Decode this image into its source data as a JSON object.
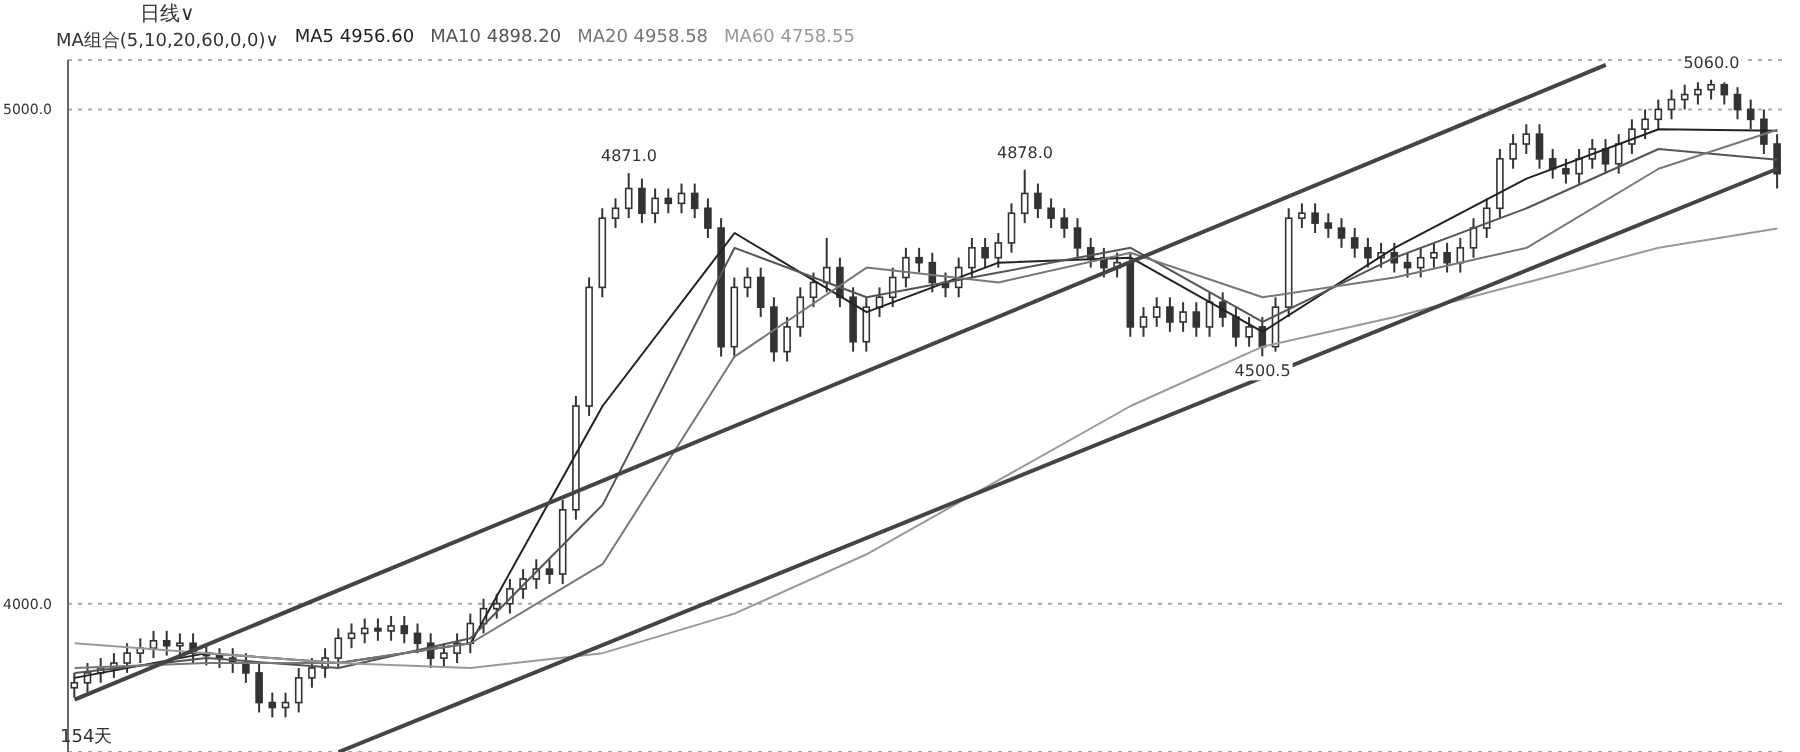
{
  "chart_data": {
    "type": "candlestick",
    "color": "#333333",
    "categories": [
      null,
      null,
      null,
      null,
      null,
      null,
      null,
      null,
      null,
      null,
      null,
      null,
      null,
      null,
      null,
      null,
      null,
      null,
      null,
      null,
      null,
      null,
      null,
      null,
      null,
      null,
      null,
      null,
      null,
      null,
      null,
      null,
      null,
      null,
      null,
      null,
      null,
      null,
      null,
      null,
      null,
      null,
      null,
      null,
      null,
      null,
      null,
      null,
      null,
      null,
      null,
      null,
      null,
      null,
      null,
      null,
      null,
      null,
      null,
      null,
      null,
      null,
      null,
      null,
      null,
      null,
      null,
      null,
      null,
      null,
      null,
      null,
      null,
      null,
      null,
      null,
      null,
      null,
      null,
      null,
      null,
      null,
      null,
      null,
      null,
      null,
      null,
      null,
      null,
      null,
      null,
      null,
      null,
      null,
      null,
      null,
      null,
      null,
      null,
      null,
      null,
      null,
      null,
      null,
      null,
      null,
      null,
      null,
      null,
      null,
      null,
      null,
      null,
      null,
      null,
      null,
      null,
      null,
      null,
      null,
      null,
      null,
      null,
      null,
      null,
      null,
      null,
      null,
      null,
      null
    ],
    "ohlc": [
      [
        3830,
        3860,
        3810,
        3840
      ],
      [
        3840,
        3880,
        3820,
        3860
      ],
      [
        3860,
        3890,
        3840,
        3870
      ],
      [
        3870,
        3900,
        3850,
        3880
      ],
      [
        3880,
        3920,
        3860,
        3900
      ],
      [
        3900,
        3930,
        3880,
        3910
      ],
      [
        3910,
        3945,
        3890,
        3925
      ],
      [
        3925,
        3945,
        3895,
        3915
      ],
      [
        3915,
        3940,
        3895,
        3920
      ],
      [
        3920,
        3940,
        3880,
        3900
      ],
      [
        3900,
        3915,
        3875,
        3895
      ],
      [
        3895,
        3910,
        3870,
        3890
      ],
      [
        3890,
        3910,
        3860,
        3880
      ],
      [
        3880,
        3900,
        3840,
        3860
      ],
      [
        3860,
        3880,
        3780,
        3800
      ],
      [
        3800,
        3820,
        3770,
        3790
      ],
      [
        3790,
        3820,
        3770,
        3800
      ],
      [
        3800,
        3870,
        3780,
        3850
      ],
      [
        3850,
        3890,
        3830,
        3870
      ],
      [
        3870,
        3910,
        3850,
        3890
      ],
      [
        3890,
        3950,
        3870,
        3930
      ],
      [
        3930,
        3960,
        3910,
        3940
      ],
      [
        3940,
        3970,
        3920,
        3950
      ],
      [
        3950,
        3970,
        3925,
        3945
      ],
      [
        3945,
        3975,
        3925,
        3955
      ],
      [
        3955,
        3975,
        3920,
        3940
      ],
      [
        3940,
        3960,
        3900,
        3920
      ],
      [
        3920,
        3940,
        3870,
        3890
      ],
      [
        3890,
        3920,
        3870,
        3900
      ],
      [
        3900,
        3940,
        3880,
        3920
      ],
      [
        3920,
        3980,
        3900,
        3960
      ],
      [
        3960,
        4010,
        3940,
        3990
      ],
      [
        3990,
        4020,
        3970,
        4000
      ],
      [
        4000,
        4050,
        3980,
        4030
      ],
      [
        4030,
        4070,
        4010,
        4050
      ],
      [
        4050,
        4090,
        4030,
        4070
      ],
      [
        4070,
        4090,
        4040,
        4060
      ],
      [
        4060,
        4210,
        4040,
        4190
      ],
      [
        4190,
        4420,
        4170,
        4400
      ],
      [
        4400,
        4660,
        4380,
        4640
      ],
      [
        4640,
        4800,
        4620,
        4780
      ],
      [
        4780,
        4820,
        4760,
        4800
      ],
      [
        4800,
        4871,
        4780,
        4840
      ],
      [
        4840,
        4860,
        4770,
        4790
      ],
      [
        4790,
        4840,
        4770,
        4820
      ],
      [
        4820,
        4840,
        4790,
        4810
      ],
      [
        4810,
        4850,
        4790,
        4830
      ],
      [
        4830,
        4850,
        4780,
        4800
      ],
      [
        4800,
        4820,
        4740,
        4760
      ],
      [
        4760,
        4780,
        4500,
        4520
      ],
      [
        4520,
        4660,
        4500,
        4640
      ],
      [
        4640,
        4680,
        4620,
        4660
      ],
      [
        4660,
        4680,
        4580,
        4600
      ],
      [
        4600,
        4620,
        4490,
        4510
      ],
      [
        4510,
        4580,
        4490,
        4560
      ],
      [
        4560,
        4640,
        4540,
        4620
      ],
      [
        4620,
        4670,
        4600,
        4650
      ],
      [
        4650,
        4740,
        4630,
        4680
      ],
      [
        4680,
        4700,
        4600,
        4620
      ],
      [
        4620,
        4640,
        4510,
        4530
      ],
      [
        4530,
        4620,
        4510,
        4600
      ],
      [
        4600,
        4640,
        4580,
        4620
      ],
      [
        4620,
        4680,
        4600,
        4660
      ],
      [
        4660,
        4720,
        4640,
        4700
      ],
      [
        4700,
        4720,
        4670,
        4690
      ],
      [
        4690,
        4710,
        4630,
        4650
      ],
      [
        4650,
        4670,
        4620,
        4640
      ],
      [
        4640,
        4700,
        4620,
        4680
      ],
      [
        4680,
        4740,
        4660,
        4720
      ],
      [
        4720,
        4740,
        4680,
        4700
      ],
      [
        4700,
        4750,
        4680,
        4730
      ],
      [
        4730,
        4810,
        4710,
        4790
      ],
      [
        4790,
        4878,
        4770,
        4830
      ],
      [
        4830,
        4850,
        4780,
        4800
      ],
      [
        4800,
        4820,
        4760,
        4780
      ],
      [
        4780,
        4800,
        4740,
        4760
      ],
      [
        4760,
        4780,
        4700,
        4720
      ],
      [
        4720,
        4740,
        4680,
        4700
      ],
      [
        4700,
        4720,
        4660,
        4680
      ],
      [
        4680,
        4710,
        4660,
        4690
      ],
      [
        4690,
        4710,
        4540,
        4560
      ],
      [
        4560,
        4600,
        4540,
        4580
      ],
      [
        4580,
        4620,
        4560,
        4600
      ],
      [
        4600,
        4620,
        4550,
        4570
      ],
      [
        4570,
        4610,
        4550,
        4590
      ],
      [
        4590,
        4610,
        4540,
        4560
      ],
      [
        4560,
        4630,
        4540,
        4610
      ],
      [
        4610,
        4630,
        4560,
        4580
      ],
      [
        4580,
        4600,
        4520,
        4540
      ],
      [
        4540,
        4580,
        4520,
        4560
      ],
      [
        4560,
        4580,
        4500.5,
        4520
      ],
      [
        4520,
        4620,
        4510,
        4600
      ],
      [
        4600,
        4800,
        4580,
        4780
      ],
      [
        4780,
        4810,
        4760,
        4790
      ],
      [
        4790,
        4810,
        4750,
        4770
      ],
      [
        4770,
        4790,
        4740,
        4760
      ],
      [
        4760,
        4780,
        4720,
        4740
      ],
      [
        4740,
        4760,
        4700,
        4720
      ],
      [
        4720,
        4740,
        4680,
        4700
      ],
      [
        4700,
        4730,
        4680,
        4710
      ],
      [
        4710,
        4730,
        4670,
        4690
      ],
      [
        4690,
        4710,
        4660,
        4680
      ],
      [
        4680,
        4720,
        4660,
        4700
      ],
      [
        4700,
        4730,
        4680,
        4710
      ],
      [
        4710,
        4730,
        4670,
        4690
      ],
      [
        4690,
        4740,
        4670,
        4720
      ],
      [
        4720,
        4780,
        4700,
        4760
      ],
      [
        4760,
        4820,
        4740,
        4800
      ],
      [
        4800,
        4920,
        4780,
        4900
      ],
      [
        4900,
        4950,
        4880,
        4930
      ],
      [
        4930,
        4970,
        4910,
        4950
      ],
      [
        4950,
        4970,
        4880,
        4900
      ],
      [
        4900,
        4920,
        4860,
        4880
      ],
      [
        4880,
        4900,
        4850,
        4870
      ],
      [
        4870,
        4920,
        4850,
        4900
      ],
      [
        4900,
        4940,
        4880,
        4920
      ],
      [
        4920,
        4940,
        4870,
        4890
      ],
      [
        4890,
        4950,
        4870,
        4930
      ],
      [
        4930,
        4980,
        4910,
        4960
      ],
      [
        4960,
        5000,
        4940,
        4980
      ],
      [
        4980,
        5020,
        4960,
        5000
      ],
      [
        5000,
        5040,
        4980,
        5020
      ],
      [
        5020,
        5050,
        5000,
        5030
      ],
      [
        5030,
        5055,
        5010,
        5040
      ],
      [
        5040,
        5060,
        5020,
        5050
      ],
      [
        5050,
        5055,
        5010,
        5030
      ],
      [
        5030,
        5045,
        4980,
        5000
      ],
      [
        5000,
        5020,
        4960,
        4980
      ],
      [
        4980,
        5000,
        4910,
        4930
      ],
      [
        4930,
        4950,
        4840,
        4870
      ]
    ],
    "series": [
      {
        "type": "line",
        "name": "MA5 4956.60",
        "color": "#222222",
        "values": [
          3850,
          null,
          null,
          null,
          null,
          null,
          null,
          null,
          null,
          null,
          3900,
          null,
          null,
          null,
          null,
          null,
          null,
          null,
          null,
          null,
          3880,
          null,
          null,
          null,
          null,
          null,
          null,
          null,
          null,
          null,
          3920,
          null,
          null,
          null,
          null,
          null,
          null,
          null,
          null,
          null,
          4400,
          null,
          null,
          null,
          null,
          null,
          null,
          null,
          null,
          null,
          4750,
          null,
          null,
          null,
          null,
          null,
          null,
          null,
          null,
          null,
          4590,
          null,
          null,
          null,
          null,
          null,
          null,
          null,
          null,
          null,
          4690,
          null,
          null,
          null,
          null,
          null,
          null,
          null,
          null,
          null,
          4700,
          null,
          null,
          null,
          null,
          null,
          null,
          null,
          null,
          null,
          4550,
          null,
          null,
          null,
          null,
          null,
          null,
          null,
          null,
          null,
          4720,
          null,
          null,
          null,
          null,
          null,
          null,
          null,
          null,
          null,
          4860,
          null,
          null,
          null,
          null,
          null,
          null,
          null,
          null,
          null,
          4960,
          null,
          null,
          null,
          null,
          null,
          null,
          null,
          null,
          4957
        ]
      },
      {
        "type": "line",
        "name": "MA10 4898.20",
        "color": "#555555",
        "values": [
          3860,
          null,
          null,
          null,
          null,
          null,
          null,
          null,
          null,
          null,
          3890,
          null,
          null,
          null,
          null,
          null,
          null,
          null,
          null,
          null,
          3870,
          null,
          null,
          null,
          null,
          null,
          null,
          null,
          null,
          null,
          3930,
          null,
          null,
          null,
          null,
          null,
          null,
          null,
          null,
          null,
          4200,
          null,
          null,
          null,
          null,
          null,
          null,
          null,
          null,
          null,
          4720,
          null,
          null,
          null,
          null,
          null,
          null,
          null,
          null,
          null,
          4620,
          null,
          null,
          null,
          null,
          null,
          null,
          null,
          null,
          null,
          4670,
          null,
          null,
          null,
          null,
          null,
          null,
          null,
          null,
          null,
          4720,
          null,
          null,
          null,
          null,
          null,
          null,
          null,
          null,
          null,
          4570,
          null,
          null,
          null,
          null,
          null,
          null,
          null,
          null,
          null,
          4700,
          null,
          null,
          null,
          null,
          null,
          null,
          null,
          null,
          null,
          4800,
          null,
          null,
          null,
          null,
          null,
          null,
          null,
          null,
          null,
          4920,
          null,
          null,
          null,
          null,
          null,
          null,
          null,
          null,
          4898
        ]
      },
      {
        "type": "line",
        "name": "MA20 4958.58",
        "color": "#777777",
        "values": [
          3870,
          null,
          null,
          null,
          null,
          null,
          null,
          null,
          null,
          null,
          3880,
          null,
          null,
          null,
          null,
          null,
          null,
          null,
          null,
          null,
          3880,
          null,
          null,
          null,
          null,
          null,
          null,
          null,
          null,
          null,
          3920,
          null,
          null,
          null,
          null,
          null,
          null,
          null,
          null,
          null,
          4080,
          null,
          null,
          null,
          null,
          null,
          null,
          null,
          null,
          null,
          4500,
          null,
          null,
          null,
          null,
          null,
          null,
          null,
          null,
          null,
          4680,
          null,
          null,
          null,
          null,
          null,
          null,
          null,
          null,
          null,
          4650,
          null,
          null,
          null,
          null,
          null,
          null,
          null,
          null,
          null,
          4710,
          null,
          null,
          null,
          null,
          null,
          null,
          null,
          null,
          null,
          4620,
          null,
          null,
          null,
          null,
          null,
          null,
          null,
          null,
          null,
          4660,
          null,
          null,
          null,
          null,
          null,
          null,
          null,
          null,
          null,
          4720,
          null,
          null,
          null,
          null,
          null,
          null,
          null,
          null,
          null,
          4880,
          null,
          null,
          null,
          null,
          null,
          null,
          null,
          null,
          4959
        ]
      },
      {
        "type": "line",
        "name": "MA60 4758.55",
        "color": "#999999",
        "values": [
          3920,
          null,
          null,
          null,
          null,
          null,
          null,
          null,
          null,
          null,
          3900,
          null,
          null,
          null,
          null,
          null,
          null,
          null,
          null,
          null,
          3880,
          null,
          null,
          null,
          null,
          null,
          null,
          null,
          null,
          null,
          3870,
          null,
          null,
          null,
          null,
          null,
          null,
          null,
          null,
          null,
          3900,
          null,
          null,
          null,
          null,
          null,
          null,
          null,
          null,
          null,
          3980,
          null,
          null,
          null,
          null,
          null,
          null,
          null,
          null,
          null,
          4100,
          null,
          null,
          null,
          null,
          null,
          null,
          null,
          null,
          null,
          4250,
          null,
          null,
          null,
          null,
          null,
          null,
          null,
          null,
          null,
          4400,
          null,
          null,
          null,
          null,
          null,
          null,
          null,
          null,
          null,
          4520,
          null,
          null,
          null,
          null,
          null,
          null,
          null,
          null,
          null,
          4580,
          null,
          null,
          null,
          null,
          null,
          null,
          null,
          null,
          null,
          4650,
          null,
          null,
          null,
          null,
          null,
          null,
          null,
          null,
          null,
          4720,
          null,
          null,
          null,
          null,
          null,
          null,
          null,
          null,
          4759
        ]
      },
      {
        "type": "line",
        "color": "#444444",
        "values": [
          3806,
          null,
          null,
          null,
          null,
          null,
          null,
          null,
          null,
          null,
          null,
          null,
          null,
          null,
          null,
          null,
          null,
          null,
          null,
          null,
          null,
          null,
          null,
          null,
          null,
          null,
          null,
          null,
          null,
          null,
          null,
          null,
          null,
          null,
          null,
          null,
          null,
          null,
          null,
          null,
          null,
          null,
          null,
          null,
          null,
          null,
          null,
          null,
          null,
          null,
          null,
          null,
          null,
          null,
          null,
          null,
          null,
          null,
          null,
          null,
          null,
          null,
          null,
          null,
          null,
          null,
          null,
          null,
          null,
          null,
          null,
          null,
          null,
          null,
          null,
          null,
          null,
          null,
          null,
          null,
          null,
          null,
          null,
          null,
          null,
          null,
          null,
          null,
          null,
          null,
          null,
          null,
          null,
          null,
          null,
          null,
          null,
          null,
          null,
          null,
          null,
          null,
          null,
          null,
          null,
          null,
          null,
          null,
          null,
          null,
          null,
          null,
          null,
          null,
          null,
          null,
          5090,
          null,
          null,
          null,
          null,
          null,
          null,
          null,
          null,
          null,
          null,
          null,
          null,
          null
        ]
      },
      {
        "type": "line",
        "color": "#444444",
        "values": [
          null,
          null,
          null,
          null,
          null,
          null,
          null,
          null,
          null,
          null,
          null,
          null,
          null,
          null,
          null,
          null,
          null,
          null,
          null,
          null,
          3700,
          null,
          null,
          null,
          null,
          null,
          null,
          null,
          null,
          null,
          null,
          null,
          null,
          null,
          null,
          null,
          null,
          null,
          null,
          null,
          null,
          null,
          null,
          null,
          null,
          null,
          null,
          null,
          null,
          null,
          null,
          null,
          null,
          null,
          null,
          null,
          null,
          null,
          null,
          null,
          null,
          null,
          null,
          null,
          null,
          null,
          null,
          null,
          null,
          null,
          null,
          null,
          null,
          null,
          null,
          null,
          null,
          null,
          null,
          null,
          null,
          null,
          null,
          null,
          null,
          null,
          null,
          null,
          null,
          null,
          null,
          null,
          null,
          null,
          null,
          null,
          null,
          null,
          null,
          null,
          null,
          null,
          null,
          null,
          null,
          null,
          null,
          null,
          null,
          null,
          null,
          null,
          null,
          null,
          null,
          null,
          null,
          null,
          null,
          null,
          null,
          null,
          null,
          null,
          null,
          null,
          null,
          null,
          null,
          4880
        ]
      }
    ],
    "ylim": [
      3700,
      5100
    ],
    "yticks": [
      {
        "value": 4000,
        "label": "4000.0"
      },
      {
        "value": 5000,
        "label": "5000.0"
      }
    ],
    "grid": "y",
    "tick_labels": "y",
    "legend": "top left",
    "annotations": [
      "日线∨",
      "MA组合(5,10,20,60,0,0)∨",
      "154天",
      {
        "text": "4871.0",
        "y": 4871
      },
      {
        "text": "4878.0",
        "y": 4878
      },
      {
        "text": "4500.5",
        "y": 4500.5
      },
      {
        "text": "5060.0",
        "y": 5060
      }
    ]
  }
}
